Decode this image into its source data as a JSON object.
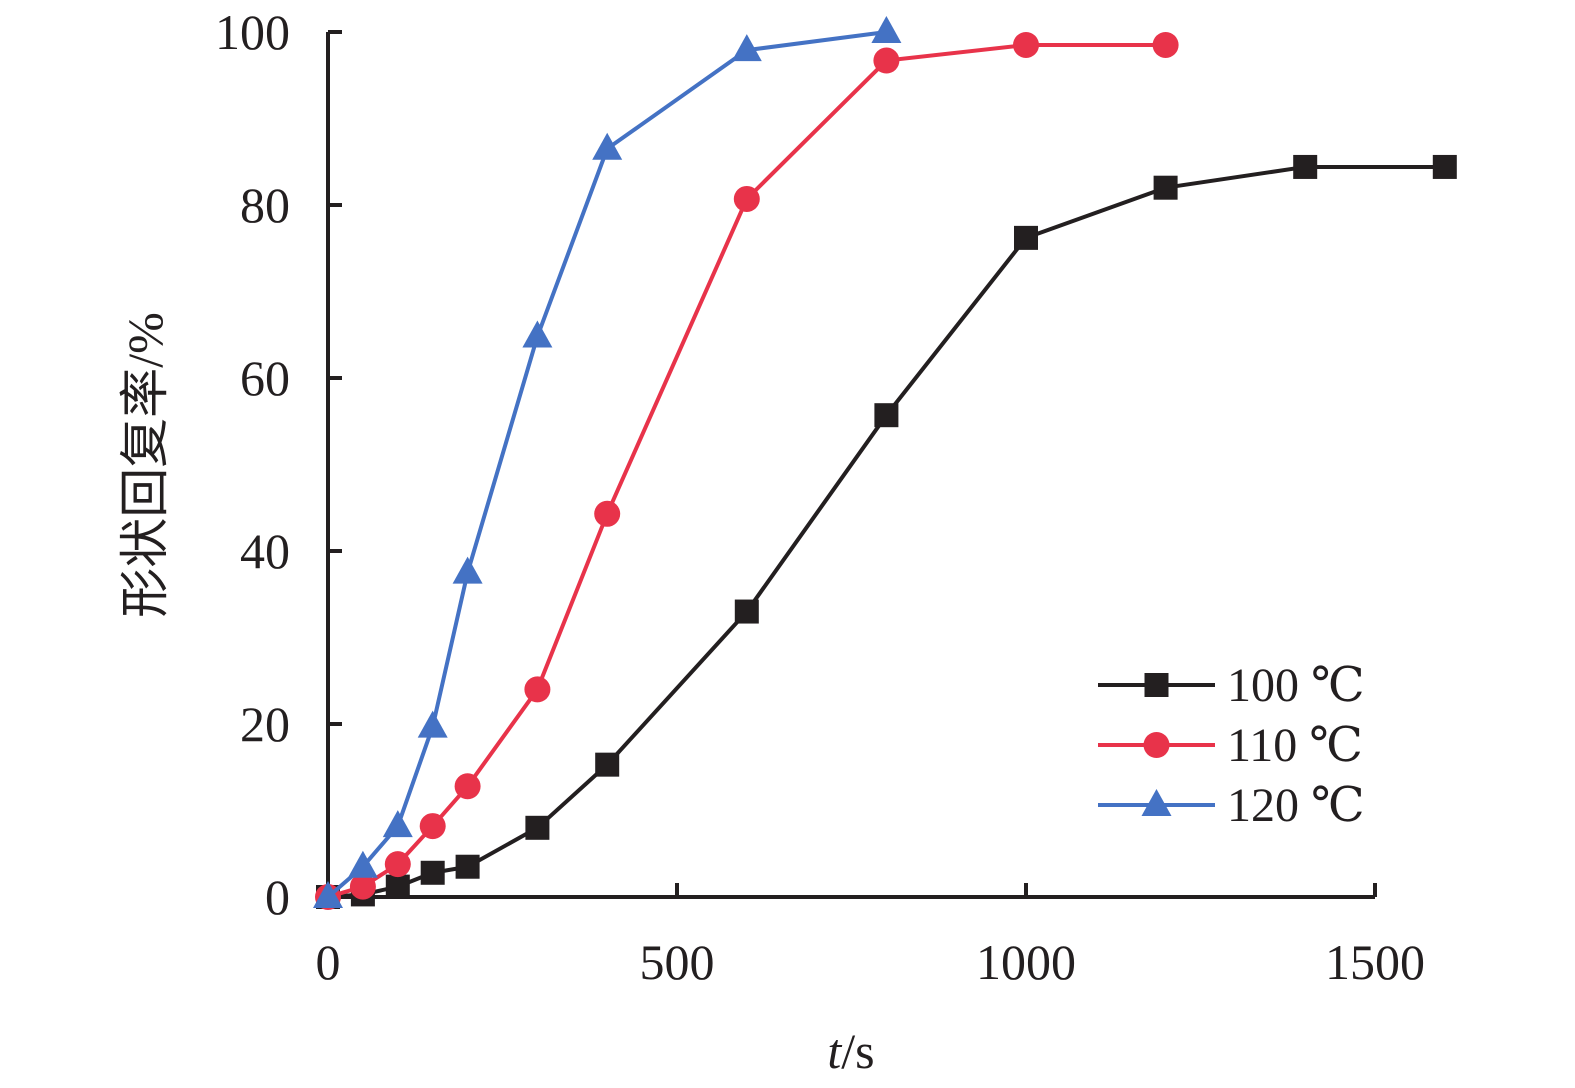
{
  "chart_data": {
    "type": "line",
    "xlabel_italic": "t",
    "xlabel_rest": "/s",
    "ylabel": "形状回复率/%",
    "xlim": [
      0,
      1500
    ],
    "ylim": [
      0,
      100
    ],
    "xticks": [
      0,
      500,
      1000,
      1500
    ],
    "yticks": [
      0,
      20,
      40,
      60,
      80,
      100
    ],
    "grid": false,
    "legend_position": "bottom-right",
    "series": [
      {
        "name": "100 ℃",
        "color": "#231f20",
        "marker": "square",
        "x": [
          0,
          50,
          100,
          150,
          200,
          300,
          400,
          600,
          800,
          1000,
          1200,
          1400,
          1600
        ],
        "y": [
          0,
          0.3,
          1.2,
          2.8,
          3.5,
          8,
          15.3,
          33,
          55.7,
          76.2,
          82,
          84.4,
          84.4
        ]
      },
      {
        "name": "110 ℃",
        "color": "#e8334a",
        "marker": "circle",
        "x": [
          0,
          50,
          100,
          150,
          200,
          300,
          400,
          600,
          800,
          1000,
          1200
        ],
        "y": [
          0,
          1.2,
          3.8,
          8.2,
          12.8,
          24,
          44.3,
          80.7,
          96.7,
          98.5,
          98.5
        ]
      },
      {
        "name": "120 ℃",
        "color": "#4472c4",
        "marker": "triangle",
        "x": [
          0,
          50,
          100,
          150,
          200,
          300,
          400,
          600,
          800
        ],
        "y": [
          0,
          3.5,
          8.2,
          19.7,
          37.5,
          64.8,
          86.5,
          97.9,
          100
        ]
      }
    ]
  }
}
